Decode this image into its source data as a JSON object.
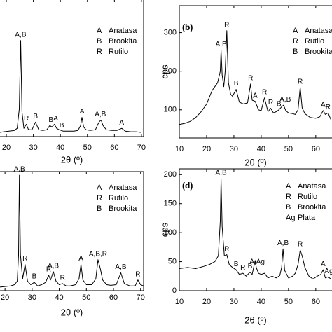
{
  "chart_data": [
    {
      "type": "line",
      "color": "#000000",
      "xlabel": "2θ (º)",
      "xlim": [
        17.4,
        70.8
      ],
      "xticks": [
        20,
        30,
        40,
        50,
        60,
        70
      ],
      "ylim": [
        0,
        100
      ],
      "x": [
        17.5,
        19,
        21,
        23,
        24,
        24.8,
        25.3,
        25.8,
        26.5,
        27.4,
        28.2,
        29.5,
        30.8,
        32,
        33.5,
        35,
        36.1,
        36.9,
        37.8,
        38.6,
        39.5,
        41,
        43,
        45,
        46.5,
        47.5,
        48,
        48.6,
        49.5,
        51,
        53,
        53.9,
        54.5,
        55.1,
        55.8,
        57,
        59,
        61,
        62.7,
        64,
        66,
        68,
        70
      ],
      "values": [
        3,
        3.5,
        4,
        4.5,
        6,
        20,
        70,
        18,
        6,
        9,
        5,
        5,
        10.5,
        5,
        4.5,
        5,
        8,
        7,
        9,
        6,
        5,
        4,
        4,
        4,
        4.5,
        8,
        14,
        7,
        5,
        4.5,
        5,
        9,
        11,
        12,
        8,
        5,
        4.5,
        4.5,
        6,
        4,
        3.5,
        3.5,
        3
      ],
      "annotations": [
        {
          "text": "A,B",
          "x": 25.3
        },
        {
          "text": "R",
          "x": 27.4
        },
        {
          "text": "B",
          "x": 30.8
        },
        {
          "text": "B",
          "x": 36.5
        },
        {
          "text": "A",
          "x": 38.3
        },
        {
          "text": "B",
          "x": 40.5
        },
        {
          "text": "A",
          "x": 48
        },
        {
          "text": "A,B",
          "x": 54.8
        },
        {
          "text": "A",
          "x": 62.7
        }
      ],
      "legend": [
        {
          "symbol": "A",
          "label": "Anatasa"
        },
        {
          "symbol": "B",
          "label": "Brookita"
        },
        {
          "symbol": "R",
          "label": "Rutilo"
        }
      ]
    },
    {
      "type": "line",
      "color": "#000000",
      "panel_label": "(b)",
      "xlabel": "2θ (º)",
      "ylabel": "cps",
      "xlim": [
        10,
        66.2
      ],
      "xticks": [
        10,
        20,
        30,
        40,
        50,
        60
      ],
      "ylim": [
        27,
        370
      ],
      "yticks": [
        100,
        200,
        300
      ],
      "x": [
        10,
        12,
        14,
        16,
        18,
        20,
        22,
        23,
        24,
        25,
        25.3,
        25.7,
        26.3,
        26.8,
        27.4,
        28,
        28.8,
        29.5,
        30.8,
        32,
        33.5,
        35,
        36.1,
        36.7,
        37.8,
        39,
        40,
        41.2,
        42.5,
        43.5,
        44.5,
        45.5,
        46.5,
        47.5,
        48.2,
        49,
        50,
        51.5,
        52.5,
        53.5,
        54.3,
        55,
        56,
        57,
        58,
        60,
        61.5,
        62.7,
        63.5,
        64.5,
        65.5
      ],
      "values": [
        62,
        65,
        70,
        80,
        95,
        115,
        150,
        160,
        170,
        200,
        255,
        190,
        160,
        200,
        305,
        170,
        140,
        135,
        153,
        120,
        115,
        118,
        167,
        125,
        122,
        100,
        98,
        131,
        95,
        104,
        92,
        95,
        100,
        108,
        112,
        98,
        92,
        90,
        88,
        100,
        158,
        105,
        90,
        85,
        80,
        78,
        82,
        98,
        88,
        92,
        75
      ],
      "annotations": [
        {
          "text": "A,B",
          "x": 25.3
        },
        {
          "text": "R",
          "x": 27.4
        },
        {
          "text": "B",
          "x": 30.8
        },
        {
          "text": "R",
          "x": 36.1
        },
        {
          "text": "A",
          "x": 37.8
        },
        {
          "text": "R",
          "x": 41.2
        },
        {
          "text": "R",
          "x": 43.5
        },
        {
          "text": "B",
          "x": 46.5
        },
        {
          "text": "A,B",
          "x": 48.8
        },
        {
          "text": "R",
          "x": 54.3
        },
        {
          "text": "A",
          "x": 62.7
        },
        {
          "text": "R",
          "x": 64.5
        }
      ],
      "legend": [
        {
          "symbol": "A",
          "label": "Anatasa"
        },
        {
          "symbol": "R",
          "label": "Rutilo"
        },
        {
          "symbol": "B",
          "label": "Brookita"
        }
      ]
    },
    {
      "type": "line",
      "color": "#000000",
      "xlabel": "2θ (º)",
      "xlim": [
        17.9,
        71.1
      ],
      "xticks": [
        20,
        30,
        40,
        50,
        60,
        70
      ],
      "ylim": [
        0,
        100
      ],
      "x": [
        18,
        20,
        22,
        23.5,
        24.5,
        25,
        25.3,
        25.7,
        26.5,
        27.4,
        28.3,
        29.5,
        30.8,
        32,
        33.5,
        35,
        36.1,
        36.8,
        37.8,
        38.8,
        40,
        41.2,
        42.5,
        44,
        46,
        47.3,
        48,
        48.7,
        50,
        52,
        53.5,
        54.3,
        55.2,
        56,
        57.5,
        59,
        61,
        62.7,
        64,
        66,
        68,
        69,
        70,
        71
      ],
      "values": [
        3,
        3.5,
        4,
        5,
        8,
        30,
        97,
        30,
        10,
        22,
        8,
        5,
        7,
        4,
        5,
        7,
        13,
        9,
        16,
        8,
        5,
        6,
        4,
        4,
        5,
        10,
        22,
        9,
        5,
        5,
        10,
        26,
        18,
        9,
        5,
        4.5,
        5,
        15,
        6,
        4,
        4,
        9,
        5,
        4
      ],
      "annotations": [
        {
          "text": "A,B",
          "x": 25.3
        },
        {
          "text": "R",
          "x": 27.4
        },
        {
          "text": "B",
          "x": 30.8
        },
        {
          "text": "R",
          "x": 36.1
        },
        {
          "text": "A,B",
          "x": 37.8
        },
        {
          "text": "R",
          "x": 41.2
        },
        {
          "text": "A",
          "x": 48
        },
        {
          "text": "A,B,R",
          "x": 54.3
        },
        {
          "text": "A,B",
          "x": 62.7
        },
        {
          "text": "R",
          "x": 69
        }
      ],
      "legend": [
        {
          "symbol": "A",
          "label": "Anatasa"
        },
        {
          "symbol": "R",
          "label": "Rutilo"
        },
        {
          "symbol": "B",
          "label": "Brookita"
        }
      ]
    },
    {
      "type": "line",
      "color": "#000000",
      "panel_label": "(d)",
      "xlabel": "2θ (º)",
      "ylabel": "cps",
      "xlim": [
        10,
        66.2
      ],
      "xticks": [
        10,
        20,
        30,
        40,
        50,
        60
      ],
      "ylim": [
        0,
        210
      ],
      "yticks": [
        0,
        50,
        100,
        150,
        200
      ],
      "x": [
        10,
        13,
        16,
        19,
        21,
        23,
        24.3,
        25,
        25.3,
        25.7,
        26.5,
        27.4,
        28.3,
        29.5,
        30.8,
        32,
        33.3,
        34.5,
        35.9,
        36.7,
        37.8,
        38.2,
        39,
        40,
        41.2,
        42.5,
        44,
        45.5,
        46.8,
        47.5,
        48,
        48.6,
        50,
        51.5,
        52.5,
        53.5,
        54.3,
        55,
        56,
        57.5,
        59,
        60.5,
        61.8,
        62.7,
        63.5,
        64.5,
        65.5
      ],
      "values": [
        38,
        40,
        38,
        42,
        45,
        50,
        60,
        120,
        193,
        110,
        60,
        62,
        45,
        40,
        36,
        28,
        30,
        25,
        32,
        28,
        52,
        40,
        30,
        28,
        30,
        22,
        25,
        22,
        26,
        40,
        72,
        35,
        22,
        25,
        30,
        45,
        70,
        60,
        40,
        25,
        20,
        25,
        28,
        36,
        22,
        24,
        20
      ],
      "annotations": [
        {
          "text": "A,B",
          "x": 25.3
        },
        {
          "text": "R",
          "x": 27.4
        },
        {
          "text": "B",
          "x": 30.8
        },
        {
          "text": "R",
          "x": 33.3
        },
        {
          "text": "B",
          "x": 35.9
        },
        {
          "text": "A,Ag",
          "x": 38.5
        },
        {
          "text": "A,B",
          "x": 48
        },
        {
          "text": "R",
          "x": 54.3
        },
        {
          "text": "A",
          "x": 62.7
        },
        {
          "text": "Ag",
          "x": 64.8
        }
      ],
      "legend": [
        {
          "symbol": "A",
          "label": "Anatasa"
        },
        {
          "symbol": "R",
          "label": "Rutilo"
        },
        {
          "symbol": "B",
          "label": "Brookita"
        },
        {
          "symbol": "Ag",
          "label": "Plata"
        }
      ]
    }
  ]
}
